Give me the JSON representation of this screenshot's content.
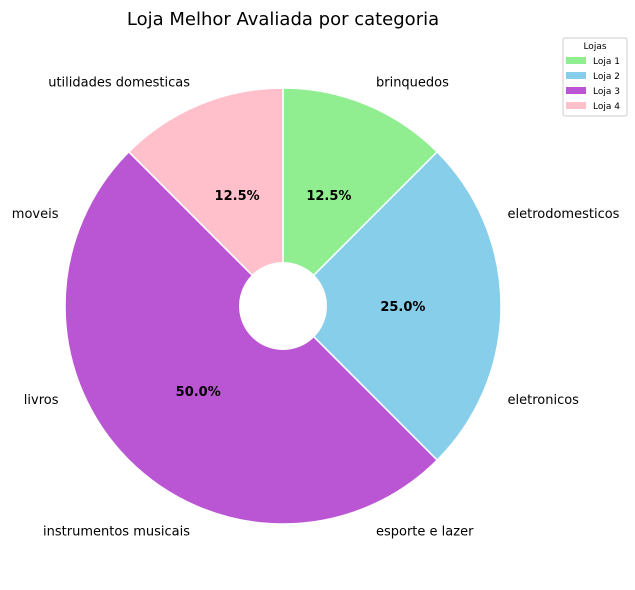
{
  "chart_data": {
    "type": "pie",
    "title": "Loja Melhor Avaliada por categoria",
    "series": [
      {
        "name": "Loja 1",
        "value": 12.5,
        "pct_label": "12.5%",
        "color": "#90ee90"
      },
      {
        "name": "Loja 2",
        "value": 25.0,
        "pct_label": "25.0%",
        "color": "#87ceeb"
      },
      {
        "name": "Loja 3",
        "value": 50.0,
        "pct_label": "50.0%",
        "color": "#ba55d3"
      },
      {
        "name": "Loja 4",
        "value": 12.5,
        "pct_label": "12.5%",
        "color": "#ffc0cb"
      }
    ],
    "category_labels": [
      "brinquedos",
      "eletrodomesticos",
      "eletronicos",
      "esporte e lazer",
      "instrumentos musicais",
      "livros",
      "moveis",
      "utilidades domesticas"
    ],
    "legend": {
      "title": "Lojas",
      "placement": "top-right"
    },
    "donut": true,
    "start_angle_deg": 90,
    "direction": "clockwise"
  }
}
